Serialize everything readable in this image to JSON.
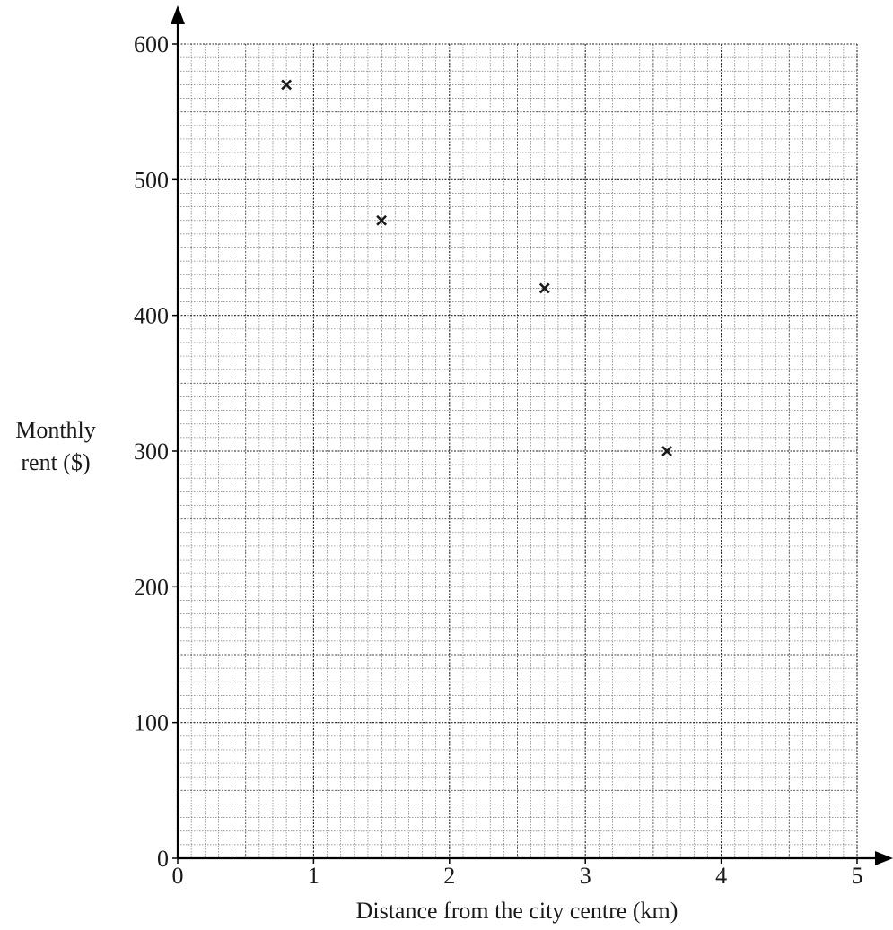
{
  "chart_data": {
    "type": "scatter",
    "xlabel": "Distance from the city centre (km)",
    "ylabel_line1": "Monthly",
    "ylabel_line2": "rent ($)",
    "xlim": [
      0,
      5
    ],
    "ylim": [
      0,
      600
    ],
    "x_ticks": [
      0,
      1,
      2,
      3,
      4,
      5
    ],
    "y_ticks": [
      0,
      100,
      200,
      300,
      400,
      500,
      600
    ],
    "x_tick_labels": [
      "0",
      "1",
      "2",
      "3",
      "4",
      "5"
    ],
    "y_tick_labels": [
      "0",
      "100",
      "200",
      "300",
      "400",
      "500",
      "600"
    ],
    "grid": true,
    "marker": "x",
    "points": [
      {
        "x": 0.8,
        "y": 570
      },
      {
        "x": 1.5,
        "y": 470
      },
      {
        "x": 2.7,
        "y": 420
      },
      {
        "x": 3.6,
        "y": 300
      }
    ]
  }
}
